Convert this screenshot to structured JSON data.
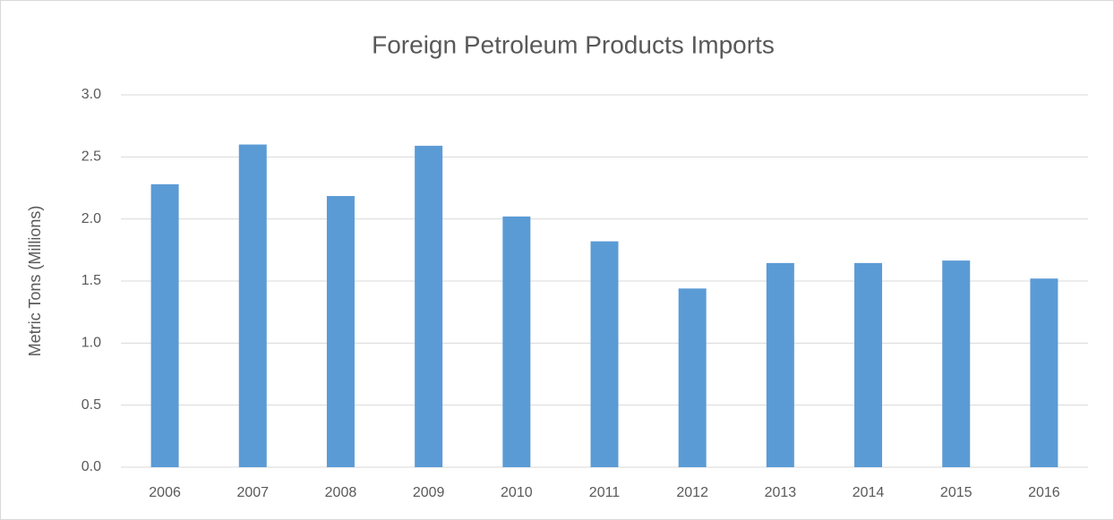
{
  "chart_data": {
    "type": "bar",
    "title": "Foreign Petroleum Products Imports",
    "y_axis_label": "Metric Tons (Millions)",
    "categories": [
      "2006",
      "2007",
      "2008",
      "2009",
      "2010",
      "2011",
      "2012",
      "2013",
      "2014",
      "2015",
      "2016"
    ],
    "values": [
      2.28,
      2.6,
      2.185,
      2.59,
      2.02,
      1.82,
      1.44,
      1.645,
      1.645,
      1.665,
      1.52
    ],
    "color": "#5b9bd5",
    "ylim": [
      0,
      3
    ],
    "yticks": [
      {
        "value": 0,
        "label": "0.0"
      },
      0.5,
      {
        "value": 1,
        "label": "1.0"
      },
      1.5,
      {
        "value": 2,
        "label": "2.0"
      },
      2.5,
      {
        "value": 3,
        "label": "3.0"
      }
    ],
    "grid": true
  }
}
